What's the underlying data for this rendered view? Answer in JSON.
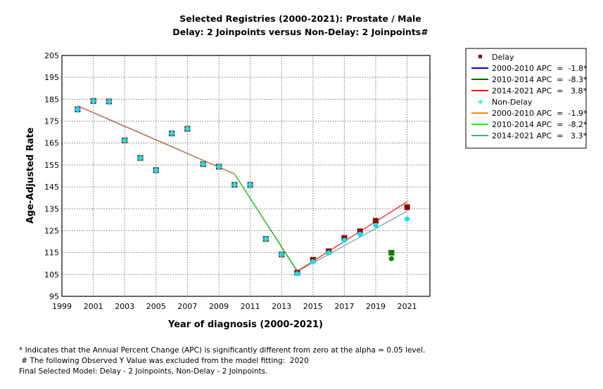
{
  "chart_data": {
    "type": "line",
    "title": "Selected Registries (2000-2021): Prostate / Male",
    "subtitle": "Delay: 2 Joinpoints  versus  Non-Delay: 2 Joinpoints#",
    "xlabel": "Year of diagnosis (2000-2021)",
    "ylabel": "Age-Adjusted Rate",
    "xlim": [
      1999,
      2022
    ],
    "ylim": [
      95,
      205
    ],
    "x_ticks": [
      "1999",
      "2001",
      "2003",
      "2005",
      "2007",
      "2009",
      "2011",
      "2013",
      "2015",
      "2017",
      "2019",
      "2021"
    ],
    "y_ticks": [
      "95",
      "105",
      "115",
      "125",
      "135",
      "145",
      "155",
      "165",
      "175",
      "185",
      "195",
      "205"
    ],
    "grid": true,
    "legend_position": "right",
    "series": [
      {
        "name": "Delay",
        "kind": "observed",
        "marker": "square",
        "color": "#8b0000",
        "x": [
          2000,
          2001,
          2002,
          2003,
          2004,
          2005,
          2006,
          2007,
          2008,
          2009,
          2010,
          2011,
          2012,
          2013,
          2014,
          2015,
          2016,
          2017,
          2018,
          2019,
          2021
        ],
        "y": [
          180.4,
          184.2,
          184.0,
          166.2,
          158.2,
          152.6,
          169.4,
          171.5,
          155.4,
          154.2,
          145.9,
          145.9,
          121.2,
          114.1,
          105.8,
          111.7,
          115.6,
          121.7,
          124.7,
          129.5,
          135.7
        ]
      },
      {
        "name": "Non-Delay",
        "kind": "observed",
        "marker": "circle",
        "color": "#00e5ee",
        "x": [
          2000,
          2001,
          2002,
          2003,
          2004,
          2005,
          2006,
          2007,
          2008,
          2009,
          2010,
          2011,
          2012,
          2013,
          2014,
          2015,
          2016,
          2017,
          2018,
          2019,
          2021
        ],
        "y": [
          180.4,
          184.2,
          184.0,
          166.2,
          158.2,
          152.6,
          169.4,
          171.5,
          155.4,
          154.2,
          145.9,
          145.9,
          121.2,
          114.1,
          105.3,
          110.8,
          114.8,
          120.6,
          123.4,
          127.4,
          130.3
        ]
      },
      {
        "name": "Delay excluded (2020)",
        "kind": "excluded",
        "marker": "square",
        "color": "#007f00",
        "x": [
          2020
        ],
        "y": [
          114.9
        ]
      },
      {
        "name": "Non-Delay excluded (2020)",
        "kind": "excluded",
        "marker": "circle",
        "color": "#008000",
        "x": [
          2020
        ],
        "y": [
          112.2
        ]
      }
    ],
    "fits": [
      {
        "name": "Delay 2000-2010 APC = -1.8*",
        "color": "#0000ff",
        "x": [
          2000,
          2010
        ],
        "y": [
          182.0,
          150.9
        ]
      },
      {
        "name": "Delay 2010-2014 APC = -8.3*",
        "color": "#006400",
        "x": [
          2010,
          2014
        ],
        "y": [
          150.9,
          106.5
        ]
      },
      {
        "name": "Delay 2014-2021 APC = 3.8*",
        "color": "#ff0000",
        "x": [
          2014,
          2021
        ],
        "y": [
          106.5,
          138.2
        ]
      },
      {
        "name": "Non-Delay 2000-2010 APC = -1.9*",
        "color": "#d2691e",
        "x": [
          2000,
          2010
        ],
        "y": [
          182.0,
          150.9
        ]
      },
      {
        "name": "Non-Delay 2010-2014 APC = -8.2*",
        "color": "#32cd32",
        "x": [
          2010,
          2014
        ],
        "y": [
          150.9,
          106.3
        ]
      },
      {
        "name": "Non-Delay 2014-2021 APC = 3.3*",
        "color": "#5f9ea0",
        "x": [
          2014,
          2021
        ],
        "y": [
          106.3,
          133.9
        ]
      }
    ]
  },
  "legend": [
    {
      "type": "marker",
      "shape": "square",
      "color": "#8b0000",
      "label": "Delay"
    },
    {
      "type": "line",
      "color": "#0000ff",
      "label": "2000-2010 APC  =  -1.8*"
    },
    {
      "type": "line",
      "color": "#006400",
      "label": "2010-2014 APC  =  -8.3*"
    },
    {
      "type": "line",
      "color": "#ff0000",
      "label": "2014-2021 APC  =   3.8*"
    },
    {
      "type": "marker",
      "shape": "circle",
      "color": "#00ffff",
      "label": "Non-Delay"
    },
    {
      "type": "line",
      "color": "#ff8c00",
      "label": "2000-2010 APC  =  -1.9*"
    },
    {
      "type": "line",
      "color": "#00ff00",
      "label": "2010-2014 APC  =  -8.2*"
    },
    {
      "type": "line",
      "color": "#5f9ea0",
      "label": "2014-2021 APC  =   3.3*"
    }
  ],
  "footnotes": {
    "line1": "* Indicates that the Annual Percent Change (APC) is significantly different from zero at the alpha = 0.05 level.",
    "line2": " # The following Observed Y Value was excluded from the model fitting:  2020",
    "line3": "Final Selected Model: Delay - 2 Joinpoints, Non-Delay - 2 Joinpoints."
  }
}
